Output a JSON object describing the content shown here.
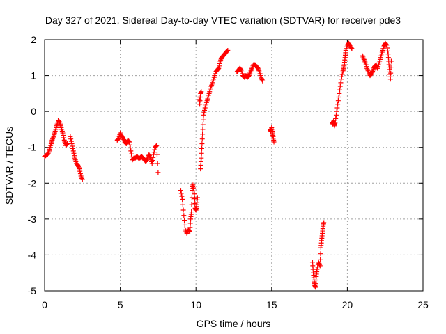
{
  "chart_data": {
    "type": "scatter",
    "title": "Day 327 of 2021, Sidereal Day-to-day VTEC variation (SDTVAR) for receiver pde3",
    "xlabel": "GPS time / hours",
    "ylabel": "SDTVAR / TECUs",
    "xlim": [
      0,
      25
    ],
    "ylim": [
      -5,
      2
    ],
    "xticks": [
      0,
      5,
      10,
      15,
      20,
      25
    ],
    "yticks": [
      -5,
      -4,
      -3,
      -2,
      -1,
      0,
      1,
      2
    ],
    "xtick_labels": [
      "0",
      "5",
      "10",
      "15",
      "20",
      "25"
    ],
    "ytick_labels": [
      "-5",
      "-4",
      "-3",
      "-2",
      "-1",
      "0",
      "1",
      "2"
    ],
    "grid": true,
    "marker": "+",
    "color": "#ff0000",
    "series": [
      {
        "name": "pde3",
        "segments": [
          [
            [
              0.0,
              -1.25
            ],
            [
              0.2,
              -1.2
            ],
            [
              0.3,
              -1.1
            ],
            [
              0.4,
              -0.95
            ],
            [
              0.5,
              -0.8
            ],
            [
              0.6,
              -0.7
            ],
            [
              0.7,
              -0.55
            ],
            [
              0.8,
              -0.4
            ],
            [
              0.9,
              -0.25
            ],
            [
              1.0,
              -0.3
            ],
            [
              1.1,
              -0.45
            ],
            [
              1.2,
              -0.6
            ],
            [
              1.3,
              -0.8
            ],
            [
              1.4,
              -0.95
            ],
            [
              1.5,
              -0.9
            ]
          ],
          [
            [
              1.7,
              -0.7
            ],
            [
              1.8,
              -0.9
            ],
            [
              1.9,
              -1.1
            ],
            [
              2.0,
              -1.3
            ],
            [
              2.1,
              -1.45
            ],
            [
              2.2,
              -1.5
            ],
            [
              2.3,
              -1.6
            ],
            [
              2.4,
              -1.8
            ],
            [
              2.5,
              -1.9
            ]
          ],
          [
            [
              4.8,
              -0.8
            ],
            [
              4.9,
              -0.75
            ],
            [
              5.0,
              -0.6
            ],
            [
              5.1,
              -0.7
            ],
            [
              5.2,
              -0.75
            ],
            [
              5.3,
              -0.85
            ],
            [
              5.4,
              -0.9
            ],
            [
              5.5,
              -0.8
            ],
            [
              5.6,
              -0.85
            ],
            [
              5.7,
              -1.1
            ],
            [
              5.8,
              -1.35
            ],
            [
              5.9,
              -1.3
            ],
            [
              6.0,
              -1.3
            ],
            [
              6.1,
              -1.25
            ],
            [
              6.2,
              -1.3
            ],
            [
              6.3,
              -1.3
            ],
            [
              6.4,
              -1.25
            ],
            [
              6.5,
              -1.3
            ],
            [
              6.6,
              -1.35
            ],
            [
              6.7,
              -1.4
            ],
            [
              6.8,
              -1.3
            ],
            [
              6.9,
              -1.2
            ],
            [
              7.0,
              -1.3
            ],
            [
              7.1,
              -1.45
            ],
            [
              7.2,
              -1.2
            ],
            [
              7.3,
              -1.0
            ],
            [
              7.4,
              -0.95
            ],
            [
              7.5,
              -1.7
            ]
          ],
          [
            [
              9.0,
              -2.2
            ],
            [
              9.1,
              -2.45
            ],
            [
              9.2,
              -2.9
            ],
            [
              9.3,
              -3.3
            ],
            [
              9.4,
              -3.4
            ],
            [
              9.5,
              -3.3
            ],
            [
              9.6,
              -3.35
            ],
            [
              9.65,
              -3.0
            ],
            [
              9.7,
              -2.8
            ],
            [
              9.75,
              -2.2
            ],
            [
              9.8,
              -2.05
            ],
            [
              9.9,
              -2.3
            ],
            [
              9.95,
              -2.7
            ],
            [
              10.0,
              -2.75
            ],
            [
              10.05,
              -2.6
            ],
            [
              10.1,
              -2.4
            ]
          ],
          [
            [
              10.3,
              -1.6
            ],
            [
              10.35,
              -1.3
            ],
            [
              10.4,
              -0.9
            ],
            [
              10.45,
              -0.5
            ],
            [
              10.5,
              -0.1
            ],
            [
              10.6,
              0.1
            ],
            [
              10.7,
              0.25
            ],
            [
              10.8,
              0.4
            ],
            [
              10.9,
              0.55
            ],
            [
              11.0,
              0.7
            ],
            [
              11.1,
              0.8
            ],
            [
              11.2,
              0.95
            ],
            [
              11.3,
              1.1
            ],
            [
              11.4,
              1.15
            ],
            [
              11.5,
              1.2
            ],
            [
              11.6,
              1.4
            ],
            [
              11.7,
              1.5
            ],
            [
              11.8,
              1.55
            ],
            [
              11.9,
              1.6
            ],
            [
              12.0,
              1.65
            ],
            [
              12.1,
              1.7
            ]
          ],
          [
            [
              10.2,
              0.4
            ],
            [
              10.25,
              0.2
            ],
            [
              10.3,
              0.5
            ],
            [
              10.35,
              0.55
            ]
          ],
          [
            [
              12.7,
              1.1
            ],
            [
              12.8,
              1.15
            ],
            [
              12.9,
              1.2
            ],
            [
              13.0,
              1.15
            ],
            [
              13.1,
              1.0
            ],
            [
              13.2,
              0.95
            ],
            [
              13.3,
              1.0
            ],
            [
              13.4,
              0.95
            ],
            [
              13.5,
              1.0
            ],
            [
              13.6,
              1.1
            ],
            [
              13.7,
              1.2
            ],
            [
              13.8,
              1.3
            ],
            [
              13.9,
              1.3
            ],
            [
              14.0,
              1.25
            ],
            [
              14.1,
              1.2
            ],
            [
              14.2,
              1.1
            ],
            [
              14.3,
              0.95
            ],
            [
              14.4,
              0.85
            ]
          ],
          [
            [
              14.9,
              -0.5
            ],
            [
              14.95,
              -0.55
            ],
            [
              15.0,
              -0.45
            ],
            [
              15.05,
              -0.6
            ],
            [
              15.1,
              -0.7
            ],
            [
              15.15,
              -0.85
            ]
          ],
          [
            [
              17.7,
              -4.2
            ],
            [
              17.75,
              -4.5
            ],
            [
              17.8,
              -4.7
            ],
            [
              17.85,
              -4.85
            ],
            [
              17.9,
              -4.9
            ],
            [
              17.95,
              -4.6
            ],
            [
              18.0,
              -4.4
            ],
            [
              18.1,
              -4.2
            ],
            [
              18.2,
              -4.3
            ],
            [
              18.25,
              -3.8
            ],
            [
              18.3,
              -3.6
            ],
            [
              18.35,
              -3.4
            ],
            [
              18.4,
              -3.2
            ],
            [
              18.45,
              -3.1
            ]
          ],
          [
            [
              19.0,
              -0.3
            ],
            [
              19.05,
              -0.35
            ],
            [
              19.1,
              -0.25
            ],
            [
              19.15,
              -0.4
            ],
            [
              19.2,
              -0.3
            ]
          ],
          [
            [
              19.2,
              -0.3
            ],
            [
              19.3,
              0.0
            ],
            [
              19.4,
              0.3
            ],
            [
              19.5,
              0.6
            ],
            [
              19.6,
              0.9
            ],
            [
              19.7,
              1.1
            ],
            [
              19.75,
              1.2
            ],
            [
              19.8,
              1.3
            ],
            [
              19.85,
              1.5
            ],
            [
              19.9,
              1.7
            ],
            [
              20.0,
              1.85
            ],
            [
              20.1,
              1.9
            ],
            [
              20.2,
              1.8
            ],
            [
              20.3,
              1.75
            ]
          ],
          [
            [
              21.0,
              1.55
            ],
            [
              21.1,
              1.45
            ],
            [
              21.2,
              1.35
            ],
            [
              21.3,
              1.2
            ],
            [
              21.4,
              1.1
            ],
            [
              21.5,
              1.0
            ],
            [
              21.6,
              1.05
            ],
            [
              21.7,
              1.15
            ],
            [
              21.8,
              1.25
            ],
            [
              21.9,
              1.3
            ],
            [
              22.0,
              1.2
            ],
            [
              22.1,
              1.35
            ],
            [
              22.2,
              1.5
            ],
            [
              22.3,
              1.65
            ],
            [
              22.4,
              1.8
            ],
            [
              22.5,
              1.9
            ],
            [
              22.6,
              1.85
            ],
            [
              22.7,
              1.6
            ],
            [
              22.75,
              1.3
            ],
            [
              22.8,
              1.1
            ],
            [
              22.85,
              0.9
            ],
            [
              22.9,
              1.4
            ]
          ]
        ]
      }
    ]
  }
}
